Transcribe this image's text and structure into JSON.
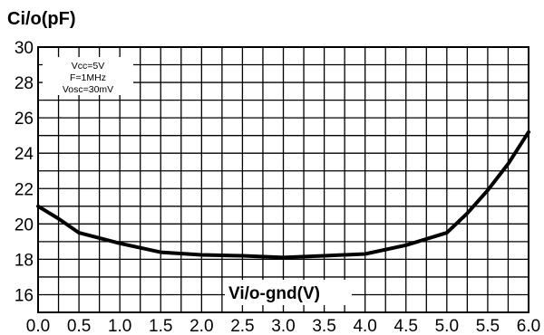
{
  "chart_data": {
    "type": "line",
    "ylabel": "Ci/o(pF)",
    "xlabel": "Vi/o-gnd(V)",
    "annotations": [
      "Vcc=5V",
      "F=1MHz",
      "Vosc=30mV"
    ],
    "xlim": [
      0,
      6
    ],
    "ylim": [
      15,
      30
    ],
    "x_ticks": [
      "0.0",
      "0.5",
      "1.0",
      "1.5",
      "2.0",
      "2.5",
      "3.0",
      "3.5",
      "4.0",
      "4.5",
      "5.0",
      "5.5",
      "6.0"
    ],
    "y_ticks": [
      "16",
      "18",
      "20",
      "22",
      "24",
      "26",
      "28",
      "30"
    ],
    "grid": true,
    "series": [
      {
        "x": [
          0.0,
          0.25,
          0.5,
          1.0,
          1.5,
          2.0,
          2.5,
          3.0,
          3.5,
          4.0,
          4.5,
          5.0,
          5.25,
          5.5,
          5.75,
          6.0
        ],
        "values": [
          21.0,
          20.3,
          19.5,
          18.9,
          18.4,
          18.25,
          18.2,
          18.1,
          18.2,
          18.3,
          18.8,
          19.5,
          20.6,
          21.9,
          23.4,
          25.2
        ]
      }
    ]
  }
}
